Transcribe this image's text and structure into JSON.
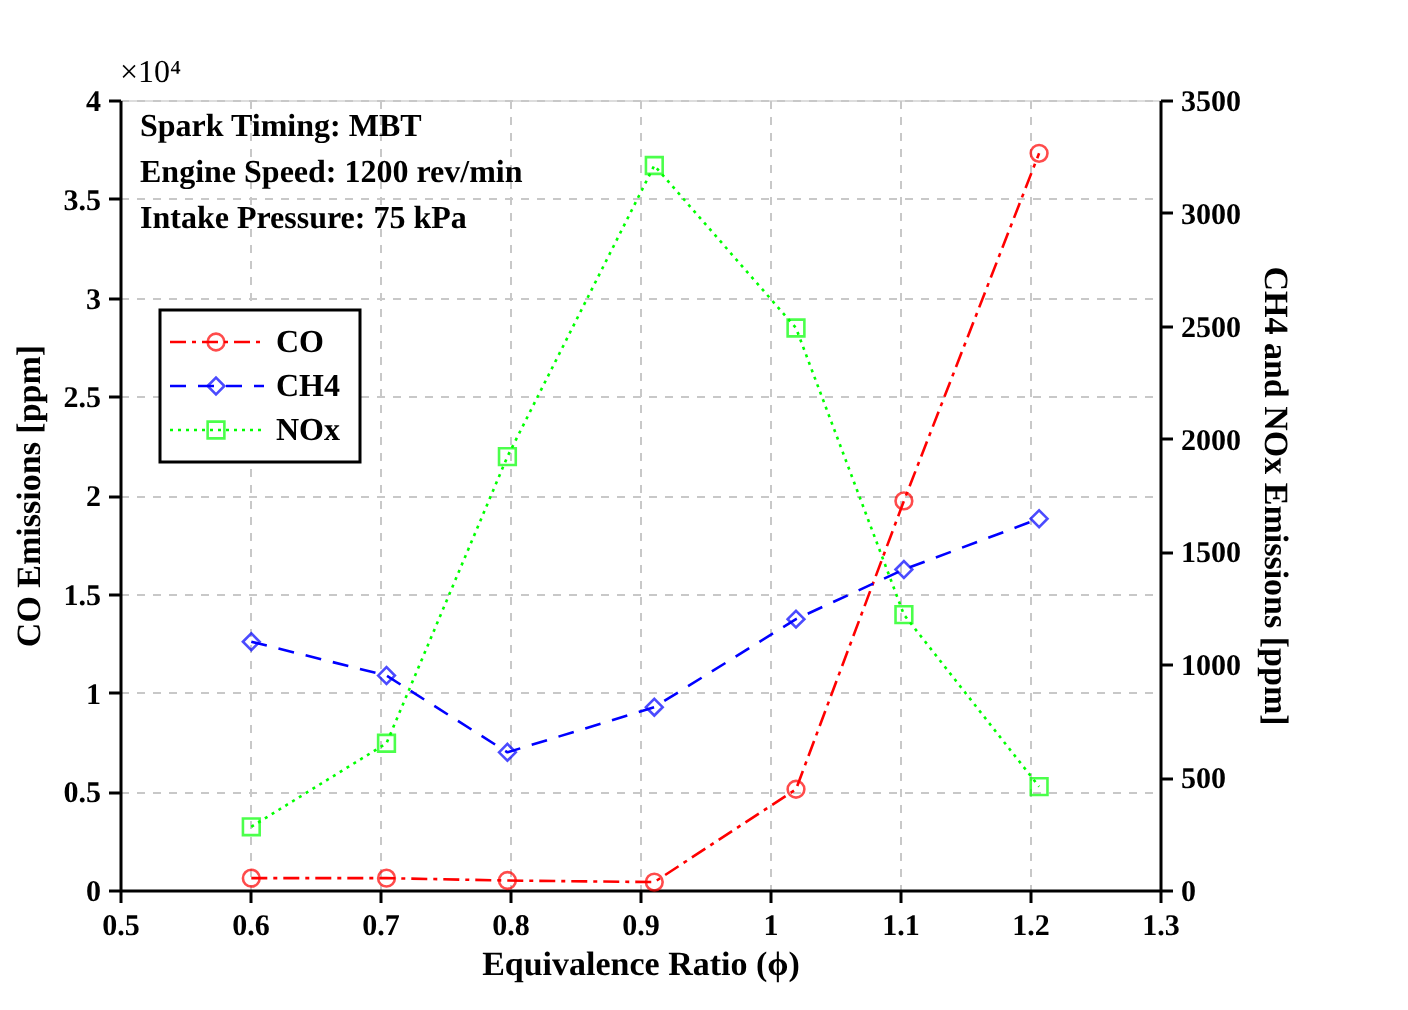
{
  "chart_data": {
    "type": "line",
    "xlabel": "Equivalence Ratio (ϕ)",
    "ylabel": "CO Emissions [ppm]",
    "y2label": "CH4 and NOx Emissions [ppm]",
    "series": [
      {
        "name": "CO",
        "color": "#ff0000",
        "marker": "circle",
        "line_style": "dashdot",
        "axis": "y",
        "x": [
          0.601,
          0.705,
          0.798,
          0.911,
          1.02,
          1.103,
          1.207
        ],
        "values": [
          0.06,
          0.06,
          0.048,
          0.04,
          0.51,
          1.97,
          3.73
        ]
      },
      {
        "name": "CH4",
        "color": "#0000ff",
        "marker": "diamond",
        "line_style": "dashed",
        "axis": "y2",
        "x": [
          0.601,
          0.705,
          0.798,
          0.911,
          1.02,
          1.103,
          1.207
        ],
        "values": [
          1100,
          950,
          610,
          810,
          1200,
          1420,
          1645
        ]
      },
      {
        "name": "NOx",
        "color": "#00ff00",
        "marker": "square",
        "line_style": "dotted",
        "axis": "y2",
        "x": [
          0.601,
          0.705,
          0.798,
          0.911,
          1.02,
          1.103,
          1.207
        ],
        "values": [
          280,
          650,
          1920,
          3210,
          2490,
          1220,
          458
        ]
      }
    ],
    "xlim": [
      0.5,
      1.3
    ],
    "xticks": [
      0.5,
      0.6,
      0.7,
      0.8,
      0.9,
      1,
      1.1,
      1.2,
      1.3
    ],
    "ylim": [
      0,
      4
    ],
    "yticks": [
      0,
      0.5,
      1,
      1.5,
      2,
      2.5,
      3,
      3.5,
      4
    ],
    "y2lim": [
      0,
      3500
    ],
    "y2ticks": [
      0,
      500,
      1000,
      1500,
      2000,
      2500,
      3000,
      3500
    ],
    "grid": true,
    "legend": "top left",
    "annotations": [
      "Spark Timing: MBT",
      "Engine Speed: 1200 rev/min",
      "Intake Pressure: 75 kPa",
      "×10⁴"
    ]
  }
}
